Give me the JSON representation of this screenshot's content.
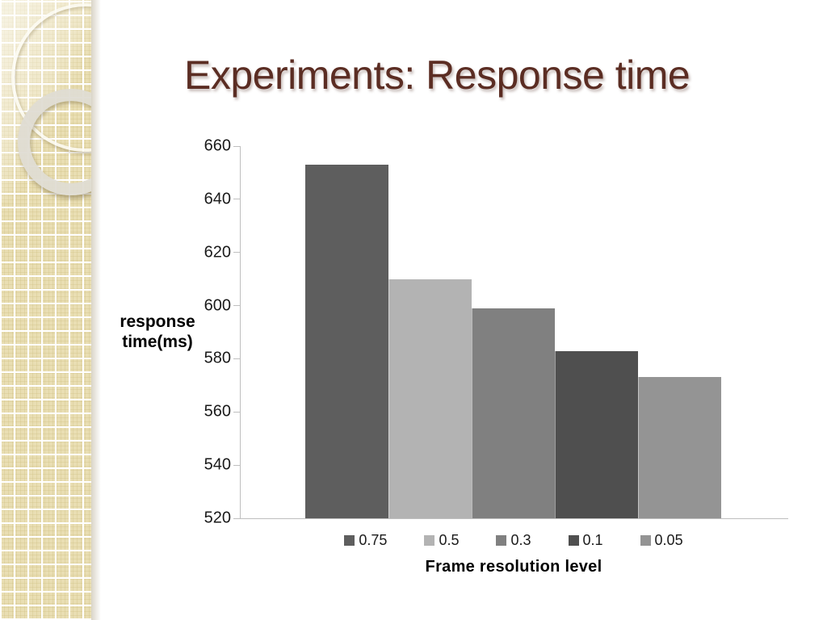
{
  "slide": {
    "title": "Experiments: Response time"
  },
  "chart_data": {
    "type": "bar",
    "title": "Experiments: Response time",
    "xlabel": "Frame resolution level",
    "ylabel": "response time(ms)",
    "ylabel_lines": [
      "response",
      "time(ms)"
    ],
    "ylim": [
      520,
      660
    ],
    "ytick_step": 20,
    "yticks": [
      660,
      640,
      620,
      600,
      580,
      560,
      540,
      520
    ],
    "grid": false,
    "legend_position": "bottom",
    "series": [
      {
        "name": "0.75",
        "value": 653,
        "color": "#5e5e5e"
      },
      {
        "name": "0.5",
        "value": 610,
        "color": "#b3b3b3"
      },
      {
        "name": "0.3",
        "value": 599,
        "color": "#808080"
      },
      {
        "name": "0.1",
        "value": 583,
        "color": "#4f4f4f"
      },
      {
        "name": "0.05",
        "value": 573,
        "color": "#949494"
      }
    ]
  },
  "theme": {
    "title_color": "#5b2d23",
    "axis_color": "#bfbfbf",
    "text_color": "#1a1a1a",
    "sidebar_color": "#e9deb3",
    "background_color": "#ffffff"
  }
}
